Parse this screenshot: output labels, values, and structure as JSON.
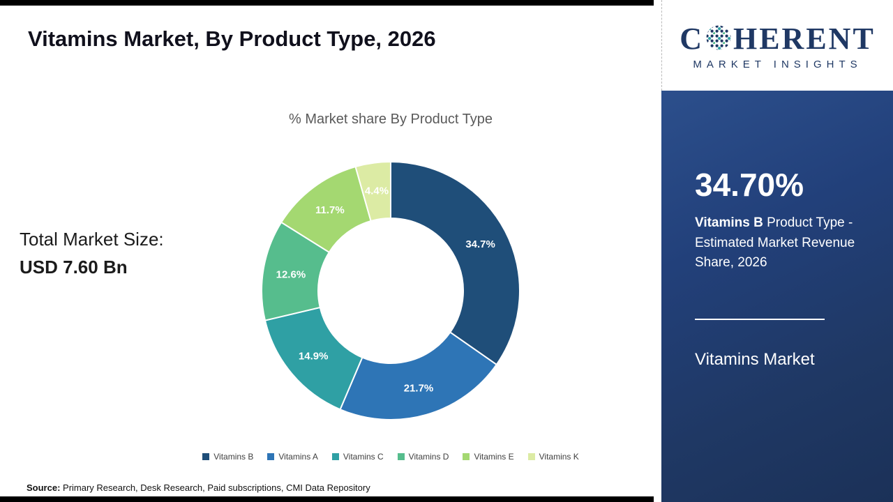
{
  "header": {
    "title": "Vitamins Market, By Product Type, 2026"
  },
  "left_panel": {
    "total_market_label": "Total Market Size:",
    "total_market_value": "USD 7.60 Bn"
  },
  "chart_data": {
    "type": "pie",
    "subtype": "donut",
    "title": "% Market share By Product Type",
    "categories": [
      "Vitamins B",
      "Vitamins A",
      "Vitamins C",
      "Vitamins D",
      "Vitamins E",
      "Vitamins K"
    ],
    "values": [
      34.7,
      21.7,
      14.9,
      12.6,
      11.7,
      4.4
    ],
    "labels": [
      "34.7%",
      "21.7%",
      "14.9%",
      "12.6%",
      "11.7%",
      "4.4%"
    ],
    "colors": [
      "#1f4e79",
      "#2e75b6",
      "#2fa0a4",
      "#56bd8d",
      "#a4d871",
      "#dceba4"
    ],
    "unit": "%",
    "start_angle_deg": -90,
    "direction": "clockwise",
    "legend_position": "bottom"
  },
  "sidebar": {
    "logo_part1": "C",
    "logo_part2": "HERENT",
    "logo_subtitle": "MARKET INSIGHTS",
    "stat_value": "34.70%",
    "stat_bold": "Vitamins B",
    "stat_text": " Product Type - Estimated Market Revenue Share, 2026",
    "footer_title": "Vitamins Market"
  },
  "footer": {
    "source_label": "Source:",
    "source_text": " Primary Research, Desk Research, Paid subscriptions, CMI Data Repository"
  }
}
